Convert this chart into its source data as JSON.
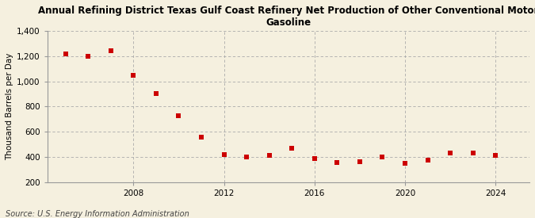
{
  "title": "Annual Refining District Texas Gulf Coast Refinery Net Production of Other Conventional Motor\nGasoline",
  "ylabel": "Thousand Barrels per Day",
  "source": "Source: U.S. Energy Information Administration",
  "background_color": "#f5f0df",
  "years": [
    2005,
    2006,
    2007,
    2008,
    2009,
    2010,
    2011,
    2012,
    2013,
    2014,
    2015,
    2016,
    2017,
    2018,
    2019,
    2020,
    2021,
    2022,
    2023,
    2024
  ],
  "values": [
    1220,
    1200,
    1240,
    1050,
    900,
    725,
    560,
    420,
    400,
    415,
    470,
    385,
    355,
    365,
    400,
    350,
    375,
    430,
    430,
    415
  ],
  "marker_color": "#cc0000",
  "marker_size": 25,
  "ylim": [
    200,
    1400
  ],
  "yticks": [
    200,
    400,
    600,
    800,
    1000,
    1200,
    1400
  ],
  "xticks": [
    2008,
    2012,
    2016,
    2020,
    2024
  ],
  "xlim_left": 2004.2,
  "xlim_right": 2025.5,
  "grid_color": "#aaaaaa",
  "title_fontsize": 8.5,
  "axis_fontsize": 7.5,
  "source_fontsize": 7
}
